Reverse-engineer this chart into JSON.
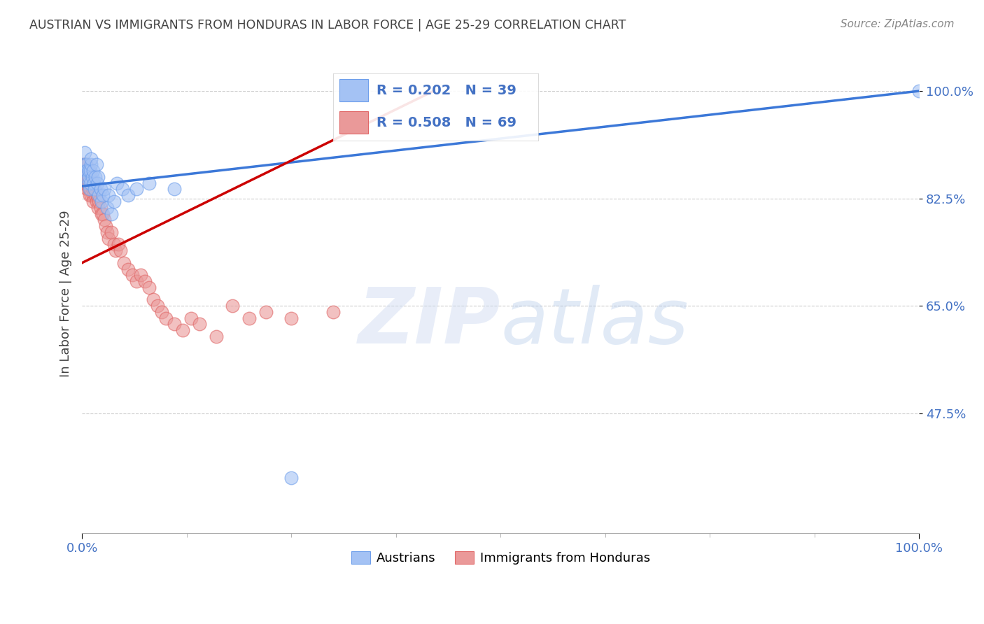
{
  "title": "AUSTRIAN VS IMMIGRANTS FROM HONDURAS IN LABOR FORCE | AGE 25-29 CORRELATION CHART",
  "source": "Source: ZipAtlas.com",
  "ylabel": "In Labor Force | Age 25-29",
  "xlim": [
    0.0,
    1.0
  ],
  "ylim": [
    0.28,
    1.06
  ],
  "yticks": [
    0.475,
    0.65,
    0.825,
    1.0
  ],
  "ytick_labels": [
    "47.5%",
    "65.0%",
    "82.5%",
    "100.0%"
  ],
  "xtick_labels": [
    "0.0%",
    "100.0%"
  ],
  "legend_labels": [
    "Austrians",
    "Immigrants from Honduras"
  ],
  "R_blue": 0.202,
  "N_blue": 39,
  "R_pink": 0.508,
  "N_pink": 69,
  "blue_color": "#a4c2f4",
  "pink_color": "#ea9999",
  "blue_edge_color": "#6d9eeb",
  "pink_edge_color": "#e06666",
  "blue_line_color": "#3c78d8",
  "pink_line_color": "#cc0000",
  "background_color": "#ffffff",
  "grid_color": "#cccccc",
  "title_color": "#434343",
  "axis_label_color": "#434343",
  "tick_label_color": "#4472c4",
  "blue_trendline_x0": 0.0,
  "blue_trendline_y0": 0.845,
  "blue_trendline_x1": 1.0,
  "blue_trendline_y1": 1.0,
  "pink_trendline_x0": 0.0,
  "pink_trendline_y0": 0.72,
  "pink_trendline_x1": 0.42,
  "pink_trendline_y1": 1.0,
  "austrians_x": [
    0.002,
    0.003,
    0.004,
    0.005,
    0.005,
    0.006,
    0.007,
    0.008,
    0.008,
    0.009,
    0.01,
    0.01,
    0.011,
    0.011,
    0.012,
    0.013,
    0.014,
    0.015,
    0.016,
    0.017,
    0.018,
    0.019,
    0.02,
    0.022,
    0.023,
    0.025,
    0.027,
    0.03,
    0.032,
    0.035,
    0.038,
    0.042,
    0.048,
    0.055,
    0.065,
    0.08,
    0.11,
    0.25,
    1.0
  ],
  "austrians_y": [
    0.88,
    0.9,
    0.87,
    0.86,
    0.88,
    0.87,
    0.85,
    0.86,
    0.87,
    0.84,
    0.85,
    0.87,
    0.88,
    0.89,
    0.86,
    0.87,
    0.85,
    0.84,
    0.86,
    0.88,
    0.85,
    0.86,
    0.83,
    0.84,
    0.82,
    0.83,
    0.84,
    0.81,
    0.83,
    0.8,
    0.82,
    0.85,
    0.84,
    0.83,
    0.84,
    0.85,
    0.84,
    0.37,
    1.0
  ],
  "honduras_x": [
    0.001,
    0.001,
    0.002,
    0.002,
    0.002,
    0.003,
    0.003,
    0.003,
    0.004,
    0.004,
    0.004,
    0.005,
    0.005,
    0.005,
    0.006,
    0.006,
    0.007,
    0.007,
    0.008,
    0.008,
    0.009,
    0.009,
    0.01,
    0.01,
    0.011,
    0.011,
    0.012,
    0.013,
    0.013,
    0.014,
    0.015,
    0.016,
    0.017,
    0.018,
    0.019,
    0.02,
    0.022,
    0.023,
    0.025,
    0.027,
    0.028,
    0.03,
    0.032,
    0.035,
    0.038,
    0.04,
    0.043,
    0.046,
    0.05,
    0.055,
    0.06,
    0.065,
    0.07,
    0.075,
    0.08,
    0.085,
    0.09,
    0.095,
    0.1,
    0.11,
    0.12,
    0.13,
    0.14,
    0.16,
    0.18,
    0.2,
    0.22,
    0.25,
    0.3
  ],
  "honduras_y": [
    0.88,
    0.87,
    0.87,
    0.86,
    0.85,
    0.88,
    0.87,
    0.86,
    0.87,
    0.86,
    0.85,
    0.88,
    0.87,
    0.86,
    0.85,
    0.84,
    0.86,
    0.85,
    0.87,
    0.84,
    0.85,
    0.83,
    0.86,
    0.84,
    0.85,
    0.83,
    0.84,
    0.83,
    0.82,
    0.84,
    0.84,
    0.83,
    0.82,
    0.83,
    0.81,
    0.82,
    0.81,
    0.8,
    0.8,
    0.79,
    0.78,
    0.77,
    0.76,
    0.77,
    0.75,
    0.74,
    0.75,
    0.74,
    0.72,
    0.71,
    0.7,
    0.69,
    0.7,
    0.69,
    0.68,
    0.66,
    0.65,
    0.64,
    0.63,
    0.62,
    0.61,
    0.63,
    0.62,
    0.6,
    0.65,
    0.63,
    0.64,
    0.63,
    0.64
  ]
}
